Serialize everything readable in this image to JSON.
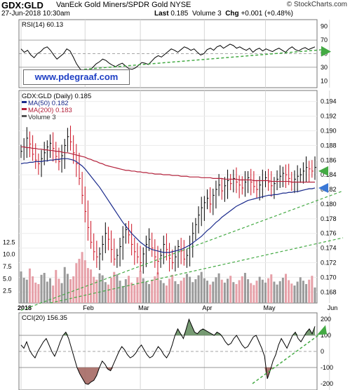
{
  "header": {
    "symbol": "GDX:GLD",
    "name": "VanEck Gold Miners/SPDR Gold NYSE",
    "brand": "© StockCharts.com",
    "date": "27-Jun-2018 10:30am",
    "last_label": "Last",
    "last_value": "0.185",
    "volume_label": "Volume",
    "volume_value": "3",
    "chg_label": "Chg",
    "chg_value": "+0.001 (+0.48%)"
  },
  "watermark": "www.pdegraaf.com",
  "colors": {
    "up": "#000000",
    "down": "#cc1122",
    "ma50": "#1a2a8c",
    "ma200": "#b3203a",
    "volume_up": "#9a9a9a",
    "volume_down": "#e6a0a8",
    "trendline": "#44aa44",
    "arrow_green": "#44aa44",
    "arrow_blue": "#3a78d6",
    "cci_fill_up": "#5f8a5a",
    "cci_fill_down": "#a0605a"
  },
  "chart_data": [
    {
      "type": "line",
      "legend": "RSI(14) 60.13",
      "ylim": [
        0,
        100
      ],
      "yticks": [
        "90",
        "70",
        "50",
        "30",
        "10"
      ],
      "ytick_values": [
        90,
        70,
        50,
        30,
        10
      ],
      "reference_lines": [
        70,
        50,
        30
      ],
      "values": [
        57,
        52,
        55,
        48,
        44,
        50,
        53,
        58,
        60,
        55,
        48,
        42,
        46,
        50,
        57,
        54,
        45,
        35,
        28,
        24,
        22,
        25,
        30,
        35,
        38,
        42,
        40,
        36,
        33,
        31,
        34,
        36,
        32,
        28,
        27,
        29,
        33,
        37,
        36,
        34,
        39,
        44,
        47,
        45,
        49,
        53,
        57,
        55,
        52,
        56,
        60,
        58,
        55,
        57,
        52,
        48,
        50,
        56,
        58,
        55,
        60,
        62,
        58,
        61,
        64,
        62,
        58,
        60,
        57,
        55,
        58,
        52,
        56,
        58,
        54,
        57,
        55,
        53,
        56,
        58,
        55,
        52,
        57,
        60,
        56,
        54,
        57,
        59,
        56,
        58,
        60
      ],
      "trendline_values": [
        27,
        56
      ]
    },
    {
      "type": "candlestick",
      "legend": [
        "GDX:GLD (Daily) 0.185",
        "MA(50) 0.182",
        "MA(200) 0.183",
        "Volume 3"
      ],
      "ylim": [
        0.1665,
        0.1955
      ],
      "yticks": [
        "0.194",
        "0.192",
        "0.190",
        "0.188",
        "0.186",
        "0.184",
        "0.182",
        "0.180",
        "0.178",
        "0.176",
        "0.174",
        "0.172",
        "0.170",
        "0.168"
      ],
      "ytick_values": [
        0.194,
        0.192,
        0.19,
        0.188,
        0.186,
        0.184,
        0.182,
        0.18,
        0.178,
        0.176,
        0.174,
        0.172,
        0.17,
        0.168
      ],
      "xticks": [
        "2018",
        "Feb",
        "Mar",
        "Apr",
        "May",
        "Jun"
      ],
      "xtick_index": [
        0,
        22,
        41,
        63,
        84,
        106
      ],
      "close": [
        0.1872,
        0.1878,
        0.189,
        0.1882,
        0.1868,
        0.186,
        0.1855,
        0.1862,
        0.187,
        0.1878,
        0.1883,
        0.1876,
        0.1865,
        0.1858,
        0.1866,
        0.188,
        0.1892,
        0.1885,
        0.187,
        0.1855,
        0.1835,
        0.1812,
        0.179,
        0.1768,
        0.1748,
        0.1735,
        0.1728,
        0.1732,
        0.1745,
        0.176,
        0.1752,
        0.1738,
        0.1725,
        0.173,
        0.1742,
        0.1755,
        0.1765,
        0.1758,
        0.1745,
        0.1735,
        0.1728,
        0.172,
        0.1732,
        0.1745,
        0.1752,
        0.174,
        0.1728,
        0.1722,
        0.173,
        0.1745,
        0.1738,
        0.1726,
        0.172,
        0.1728,
        0.1742,
        0.1736,
        0.1725,
        0.173,
        0.1745,
        0.176,
        0.1772,
        0.1785,
        0.1795,
        0.1802,
        0.1808,
        0.18,
        0.1812,
        0.182,
        0.1826,
        0.1818,
        0.1825,
        0.1832,
        0.1828,
        0.1835,
        0.183,
        0.1826,
        0.1822,
        0.183,
        0.1836,
        0.183,
        0.1824,
        0.182,
        0.1826,
        0.1832,
        0.1836,
        0.183,
        0.1825,
        0.1828,
        0.1834,
        0.1838,
        0.1842,
        0.184,
        0.1835,
        0.183,
        0.1834,
        0.1838,
        0.184,
        0.1845,
        0.185,
        0.1848,
        0.1845,
        0.185
      ],
      "ma50": [
        0.1855,
        0.1856,
        0.1856,
        0.1857,
        0.1857,
        0.1858,
        0.1858,
        0.1858,
        0.1859,
        0.1859,
        0.186,
        0.186,
        0.1861,
        0.1861,
        0.1862,
        0.1862,
        0.1862,
        0.1861,
        0.186,
        0.1858,
        0.1855,
        0.1852,
        0.1848,
        0.1843,
        0.1838,
        0.1833,
        0.1828,
        0.1823,
        0.1817,
        0.1811,
        0.1805,
        0.1799,
        0.1793,
        0.1787,
        0.1781,
        0.1775,
        0.177,
        0.1765,
        0.176,
        0.1756,
        0.1752,
        0.1748,
        0.1745,
        0.1742,
        0.174,
        0.1738,
        0.1737,
        0.1736,
        0.1735,
        0.1734,
        0.1734,
        0.1734,
        0.1735,
        0.1736,
        0.1737,
        0.1738,
        0.174,
        0.1742,
        0.1744,
        0.1747,
        0.175,
        0.1753,
        0.1756,
        0.176,
        0.1764,
        0.1767,
        0.1771,
        0.1775,
        0.1778,
        0.1782,
        0.1785,
        0.1788,
        0.1791,
        0.1794,
        0.1797,
        0.1799,
        0.1801,
        0.1803,
        0.1805,
        0.1806,
        0.1807,
        0.1808,
        0.1809,
        0.181,
        0.1811,
        0.1812,
        0.1812,
        0.1813,
        0.1813,
        0.1814,
        0.1815,
        0.1815,
        0.1816,
        0.1816,
        0.1817,
        0.1817,
        0.1818,
        0.1819,
        0.182,
        0.1821,
        0.1821,
        0.1822
      ],
      "ma200": [
        0.1878,
        0.1878,
        0.1877,
        0.1877,
        0.1876,
        0.1876,
        0.1875,
        0.1875,
        0.1874,
        0.1874,
        0.1873,
        0.1873,
        0.1872,
        0.1872,
        0.1871,
        0.187,
        0.187,
        0.1869,
        0.1868,
        0.1867,
        0.1866,
        0.1865,
        0.1864,
        0.1862,
        0.1861,
        0.1859,
        0.1858,
        0.1856,
        0.1855,
        0.1853,
        0.1852,
        0.1851,
        0.185,
        0.1849,
        0.1848,
        0.1847,
        0.1846,
        0.1846,
        0.1845,
        0.1845,
        0.1844,
        0.1844,
        0.1843,
        0.1843,
        0.1842,
        0.1842,
        0.1841,
        0.1841,
        0.1841,
        0.184,
        0.184,
        0.184,
        0.1839,
        0.1839,
        0.1839,
        0.1838,
        0.1838,
        0.1838,
        0.1837,
        0.1837,
        0.1837,
        0.1837,
        0.1836,
        0.1836,
        0.1836,
        0.1836,
        0.1835,
        0.1835,
        0.1835,
        0.1835,
        0.1834,
        0.1834,
        0.1834,
        0.1834,
        0.1834,
        0.1833,
        0.1833,
        0.1833,
        0.1833,
        0.1833,
        0.1832,
        0.1832,
        0.1832,
        0.1832,
        0.1832,
        0.1832,
        0.1831,
        0.1831,
        0.1831,
        0.1831,
        0.1831,
        0.1831,
        0.1831,
        0.183,
        0.183,
        0.183,
        0.183,
        0.183,
        0.183,
        0.183,
        0.183,
        0.183
      ],
      "volume_yticks": [
        "12.5",
        "10.0",
        "7.5",
        "5.0",
        "2.5"
      ],
      "volume_ytick_values": [
        12.5,
        10,
        7.5,
        5,
        2.5
      ],
      "volume_ylim": [
        0,
        14
      ],
      "volume": [
        6.5,
        5.2,
        4.8,
        7.1,
        5.5,
        4.2,
        3.9,
        5.8,
        6.2,
        4.4,
        5.1,
        3.6,
        6.8,
        5.0,
        4.1,
        7.4,
        6.0,
        4.9,
        5.5,
        8.2,
        9.1,
        10.5,
        8.8,
        7.2,
        6.9,
        5.4,
        4.8,
        6.1,
        5.7,
        4.3,
        3.8,
        5.2,
        6.4,
        5.9,
        4.6,
        3.5,
        4.9,
        5.6,
        4.2,
        3.7,
        5.3,
        6.6,
        5.1,
        4.4,
        3.9,
        4.8,
        5.5,
        6.3,
        4.7,
        4.1,
        3.6,
        5.0,
        5.8,
        4.5,
        3.9,
        4.6,
        5.2,
        6.0,
        5.4,
        4.3,
        4.9,
        5.7,
        6.4,
        5.1,
        4.6,
        3.8,
        4.4,
        5.3,
        6.1,
        4.8,
        4.2,
        5.0,
        5.6,
        4.3,
        3.9,
        4.7,
        5.5,
        6.2,
        4.9,
        4.1,
        3.7,
        4.6,
        5.4,
        4.8,
        4.2,
        5.1,
        5.9,
        4.4,
        3.8,
        4.5,
        5.2,
        6.0,
        4.7,
        4.0,
        3.6,
        4.4,
        5.3,
        4.6,
        3.9,
        4.8,
        5.6,
        3.2
      ],
      "trendlines": [
        {
          "from": [
            0,
            0.1655
          ],
          "to": [
            101,
            0.1818
          ]
        },
        {
          "from": [
            10,
            0.1665
          ],
          "to": [
            101,
            0.1754
          ]
        }
      ]
    },
    {
      "type": "line",
      "legend": "CCI(20) 156.35",
      "ylim": [
        -240,
        240
      ],
      "yticks": [
        "200",
        "100",
        "0",
        "-100",
        "-200"
      ],
      "ytick_values": [
        200,
        100,
        0,
        -100,
        -200
      ],
      "reference_lines": [
        100,
        0,
        -100
      ],
      "values": [
        40,
        20,
        60,
        10,
        -20,
        -40,
        0,
        30,
        60,
        80,
        40,
        0,
        -30,
        10,
        60,
        100,
        120,
        80,
        20,
        -40,
        -100,
        -140,
        -170,
        -200,
        -205,
        -190,
        -180,
        -150,
        -100,
        -60,
        -80,
        -110,
        -120,
        -80,
        -40,
        0,
        30,
        10,
        -20,
        -40,
        -30,
        -10,
        20,
        40,
        10,
        -20,
        -40,
        -30,
        0,
        30,
        10,
        -20,
        -40,
        -10,
        40,
        100,
        140,
        110,
        80,
        140,
        200,
        160,
        120,
        110,
        130,
        140,
        130,
        120,
        110,
        100,
        120,
        110,
        90,
        60,
        40,
        50,
        80,
        100,
        70,
        40,
        20,
        30,
        60,
        90,
        100,
        60,
        20,
        -30,
        -170,
        -120,
        -60,
        -20,
        40,
        80,
        50,
        20,
        60,
        100,
        120,
        80,
        60,
        90,
        120,
        140,
        110,
        156
      ],
      "trendline_values": [
        -200,
        120
      ]
    }
  ]
}
